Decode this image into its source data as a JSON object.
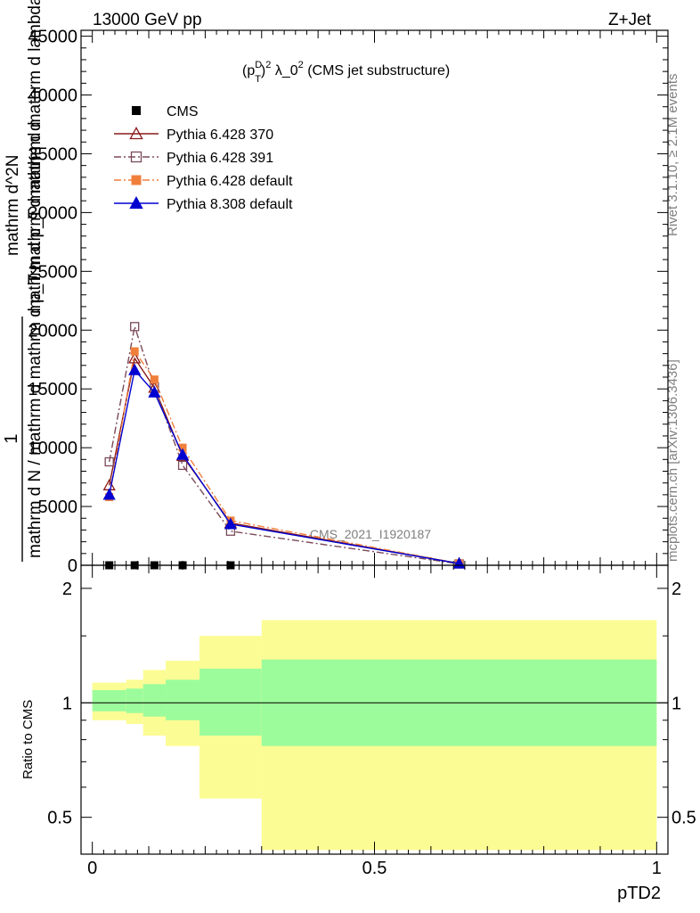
{
  "header": {
    "left": "13000 GeV pp",
    "right": "Z+Jet"
  },
  "side_labels": {
    "rivet": "Rivet 3.1.10, ≥ 2.1M events",
    "mcplots": "mcplots.cern.ch [arXiv:1306.3436]"
  },
  "watermark": "CMS_2021_I1920187",
  "chart_data": {
    "type": "line",
    "title": "(p_T^D)^2 λ_0^2 (CMS jet substructure)",
    "title_parts": {
      "a": "(p",
      "sup1": "D",
      "sub1": "T",
      "b": ")",
      "sup2": "2",
      "c": " λ_0",
      "sup3": "2",
      "d": " (CMS jet substructure)"
    },
    "xlabel": "pTD2",
    "ylabel_main": {
      "numerator": "1",
      "denominator": "mathrm d N / mathrm d mathrm d p_T mathrm d mathrm d",
      "line1": "mathrm d^2N",
      "line2": "mathrm d p_T mathrm d mathrm d lambda"
    },
    "ylabel_ratio": "Ratio to CMS",
    "xlim": [
      -0.02,
      1.02
    ],
    "ylim_main": [
      0,
      45500
    ],
    "ylim_ratio": [
      0.4,
      2.3
    ],
    "yscale_ratio": "log",
    "x_ticks": [
      "0",
      "0.5",
      "1"
    ],
    "y_ticks_main": [
      "0",
      "5000",
      "10000",
      "15000",
      "20000",
      "25000",
      "30000",
      "35000",
      "40000",
      "45000"
    ],
    "y_ticks_ratio": [
      "0.5",
      "1",
      "2"
    ],
    "legend_position": "top-left",
    "series": [
      {
        "name": "CMS",
        "color": "#000000",
        "marker": "square-filled",
        "line": "none",
        "x": [
          0.03,
          0.075,
          0.11,
          0.16,
          0.245
        ],
        "y": [
          0,
          0,
          0,
          0,
          0
        ]
      },
      {
        "name": "Pythia 6.428 370",
        "color": "#8b1a1a",
        "marker": "triangle-open",
        "line": "solid",
        "x": [
          0.03,
          0.075,
          0.11,
          0.16,
          0.245,
          0.65
        ],
        "y": [
          6800,
          17600,
          15100,
          9300,
          3600,
          150
        ]
      },
      {
        "name": "Pythia 6.428 391",
        "color": "#7b4a5a",
        "marker": "square-open",
        "line": "dashdot",
        "x": [
          0.03,
          0.075,
          0.11,
          0.16,
          0.245,
          0.65
        ],
        "y": [
          8800,
          20300,
          15200,
          8500,
          2900,
          120
        ]
      },
      {
        "name": "Pythia 6.428 default",
        "color": "#f07f3c",
        "marker": "square-filled",
        "line": "dashdot",
        "x": [
          0.03,
          0.075,
          0.11,
          0.16,
          0.245,
          0.65
        ],
        "y": [
          5800,
          18200,
          15800,
          10000,
          3800,
          160
        ]
      },
      {
        "name": "Pythia 8.308 default",
        "color": "#0000d0",
        "marker": "triangle-filled",
        "line": "solid",
        "x": [
          0.03,
          0.075,
          0.11,
          0.16,
          0.245,
          0.65
        ],
        "y": [
          6000,
          16600,
          14700,
          9400,
          3500,
          150
        ]
      }
    ],
    "ratio_bands": [
      {
        "x_range": [
          0.0,
          0.06
        ],
        "inner": [
          0.95,
          1.08
        ],
        "outer": [
          0.9,
          1.13
        ]
      },
      {
        "x_range": [
          0.06,
          0.09
        ],
        "inner": [
          0.94,
          1.09
        ],
        "outer": [
          0.88,
          1.15
        ]
      },
      {
        "x_range": [
          0.09,
          0.13
        ],
        "inner": [
          0.92,
          1.12
        ],
        "outer": [
          0.82,
          1.22
        ]
      },
      {
        "x_range": [
          0.13,
          0.19
        ],
        "inner": [
          0.9,
          1.15
        ],
        "outer": [
          0.77,
          1.29
        ]
      },
      {
        "x_range": [
          0.19,
          0.3
        ],
        "inner": [
          0.82,
          1.23
        ],
        "outer": [
          0.56,
          1.5
        ]
      },
      {
        "x_range": [
          0.3,
          1.0
        ],
        "inner": [
          0.77,
          1.3
        ],
        "outer": [
          0.41,
          1.65
        ]
      }
    ],
    "colors": {
      "band_inner": "#9cfc9c",
      "band_outer": "#fcfc94"
    }
  }
}
